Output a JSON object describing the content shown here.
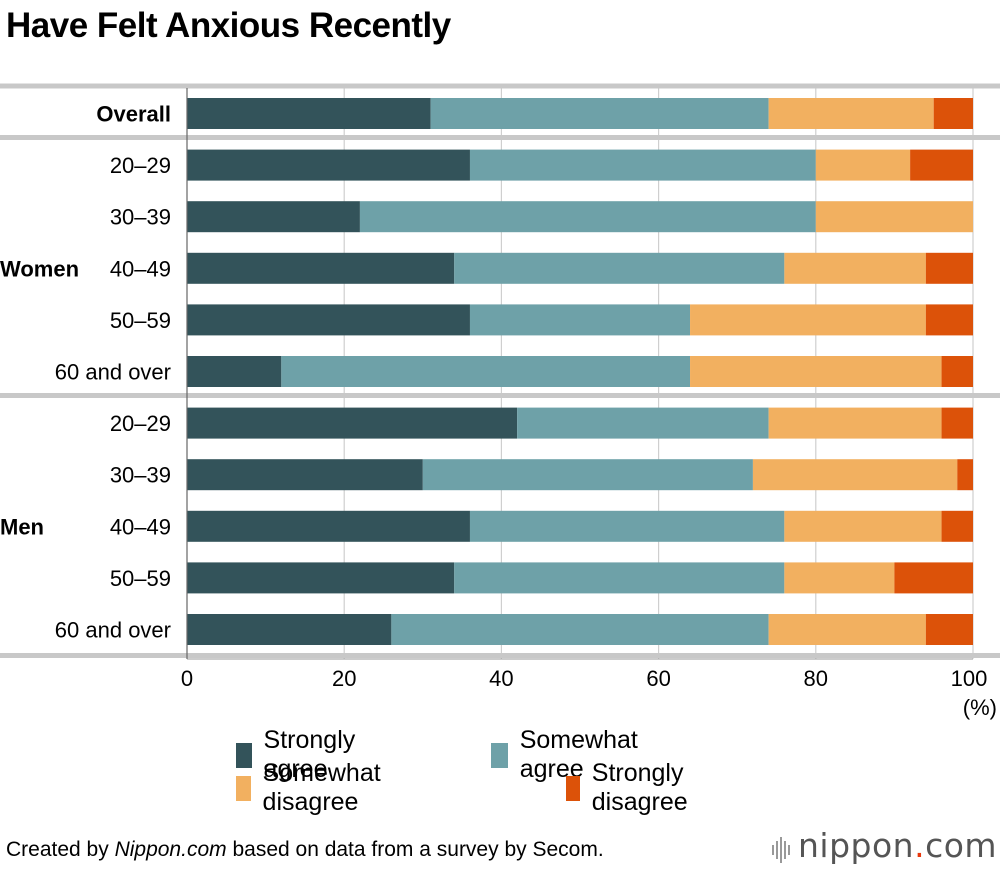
{
  "title": "Have Felt Anxious Recently",
  "footer": {
    "credit_prefix": "Created by ",
    "credit_source": "Nippon.com",
    "credit_suffix": " based on data from a survey by Secom.",
    "brand_name": "nippon",
    "brand_dot": ".",
    "brand_tld": "com"
  },
  "colors": {
    "strongly_agree": "#33535a",
    "somewhat_agree": "#6ea1a8",
    "somewhat_disagree": "#f2b060",
    "strongly_disagree": "#dc5209",
    "grid": "#cfcfcf",
    "separator": "#c8c8c8"
  },
  "chart_data": {
    "type": "bar",
    "orientation": "horizontal",
    "stacked": true,
    "title": "Have Felt Anxious Recently",
    "xlabel": "(%)",
    "xlim": [
      0,
      100
    ],
    "xticks": [
      0,
      20,
      40,
      60,
      80,
      100
    ],
    "categories": [
      "Overall",
      "20–29",
      "30–39",
      "40–49",
      "50–59",
      "60 and over",
      "20–29",
      "30–39",
      "40–49",
      "50–59",
      "60 and over"
    ],
    "groups": [
      {
        "label": "",
        "rows": [
          0
        ]
      },
      {
        "label": "Women",
        "rows": [
          1,
          2,
          3,
          4,
          5
        ]
      },
      {
        "label": "Men",
        "rows": [
          6,
          7,
          8,
          9,
          10
        ]
      }
    ],
    "series": [
      {
        "name": "Strongly agree",
        "key": "strongly_agree",
        "values": [
          31,
          36,
          22,
          34,
          36,
          12,
          42,
          30,
          36,
          34,
          26
        ]
      },
      {
        "name": "Somewhat agree",
        "key": "somewhat_agree",
        "values": [
          43,
          44,
          58,
          42,
          28,
          52,
          32,
          42,
          40,
          42,
          48
        ]
      },
      {
        "name": "Somewhat disagree",
        "key": "somewhat_disagree",
        "values": [
          21,
          12,
          20,
          18,
          30,
          32,
          22,
          26,
          20,
          14,
          20
        ]
      },
      {
        "name": "Strongly disagree",
        "key": "strongly_disagree",
        "values": [
          5,
          8,
          0,
          6,
          6,
          4,
          4,
          2,
          4,
          10,
          6
        ]
      }
    ]
  }
}
